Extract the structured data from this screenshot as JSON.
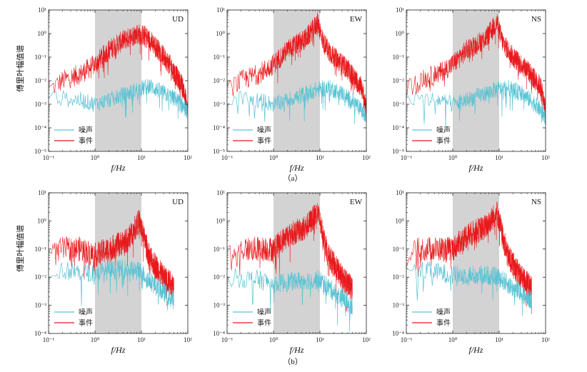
{
  "chart_data": {
    "type": "line",
    "xscale": "log",
    "yscale": "log",
    "xlabel": "f/Hz",
    "ylabel": "傅里叶幅值谱",
    "legend": [
      "噪声",
      "事件"
    ],
    "colors": {
      "noise": "#5bc3d4",
      "event": "#e8191c",
      "shade": "#d3d3d3"
    },
    "shaded_band": [
      1,
      10
    ],
    "x_ticks": [
      "10⁻¹",
      "10⁰",
      "10¹",
      "10²"
    ],
    "captions": {
      "a": "（a）",
      "b": "（b）"
    },
    "rows": [
      {
        "caption_key": "a",
        "y_ticks": [
          "10⁻⁵",
          "10⁻⁴",
          "10⁻³",
          "10⁻²",
          "10⁻¹",
          "10⁰",
          "10¹"
        ],
        "ylim_exp": [
          -5,
          1
        ],
        "panels": [
          {
            "component": "UD",
            "event": {
              "x": [
                0.1,
                0.2,
                0.5,
                1,
                2,
                4,
                8,
                12,
                20,
                40,
                80,
                100
              ],
              "y": [
                0.004,
                0.01,
                0.02,
                0.05,
                0.2,
                0.5,
                1,
                0.8,
                0.3,
                0.05,
                0.005,
                0.0005
              ]
            },
            "noise": {
              "x": [
                0.1,
                0.5,
                1,
                3,
                8,
                15,
                30,
                60,
                100
              ],
              "y": [
                0.002,
                0.0015,
                0.001,
                0.002,
                0.004,
                0.006,
                0.003,
                0.0015,
                0.0005
              ]
            }
          },
          {
            "component": "EW",
            "event": {
              "x": [
                0.1,
                0.2,
                0.5,
                1,
                2,
                5,
                9,
                12,
                20,
                40,
                80,
                100
              ],
              "y": [
                0.004,
                0.01,
                0.02,
                0.05,
                0.2,
                0.6,
                3,
                0.4,
                0.1,
                0.03,
                0.005,
                0.0005
              ]
            },
            "noise": {
              "x": [
                0.1,
                0.5,
                1,
                3,
                8,
                15,
                30,
                60,
                100
              ],
              "y": [
                0.002,
                0.0015,
                0.001,
                0.002,
                0.004,
                0.005,
                0.003,
                0.001,
                0.0003
              ]
            }
          },
          {
            "component": "NS",
            "event": {
              "x": [
                0.1,
                0.2,
                0.5,
                1,
                2,
                5,
                9,
                12,
                20,
                40,
                80,
                100
              ],
              "y": [
                0.004,
                0.01,
                0.02,
                0.05,
                0.2,
                0.6,
                3,
                0.4,
                0.1,
                0.03,
                0.005,
                0.0005
              ]
            },
            "noise": {
              "x": [
                0.1,
                0.5,
                1,
                3,
                8,
                15,
                30,
                60,
                100
              ],
              "y": [
                0.002,
                0.0015,
                0.001,
                0.002,
                0.004,
                0.005,
                0.003,
                0.001,
                0.0003
              ]
            }
          }
        ]
      },
      {
        "caption_key": "b",
        "y_ticks": [
          "10⁻⁴",
          "10⁻³",
          "10⁻²",
          "10⁻¹",
          "10⁰",
          "10¹"
        ],
        "ylim_exp": [
          -4,
          1
        ],
        "panels": [
          {
            "component": "UD",
            "event": {
              "x": [
                0.1,
                0.2,
                0.5,
                1,
                2,
                5,
                9,
                15,
                30,
                50
              ],
              "y": [
                0.05,
                0.1,
                0.1,
                0.06,
                0.1,
                0.2,
                1,
                0.05,
                0.01,
                0.005
              ]
            },
            "noise": {
              "x": [
                0.1,
                0.5,
                1,
                5,
                10,
                20,
                50
              ],
              "y": [
                0.02,
                0.015,
                0.015,
                0.02,
                0.015,
                0.005,
                0.0015
              ]
            }
          },
          {
            "component": "EW",
            "event": {
              "x": [
                0.1,
                0.2,
                0.5,
                1,
                2,
                5,
                9,
                15,
                30,
                50
              ],
              "y": [
                0.05,
                0.1,
                0.1,
                0.1,
                0.3,
                0.6,
                2,
                0.06,
                0.01,
                0.004
              ]
            },
            "noise": {
              "x": [
                0.1,
                0.5,
                1,
                5,
                10,
                20,
                50
              ],
              "y": [
                0.01,
                0.008,
                0.006,
                0.008,
                0.008,
                0.003,
                0.001
              ]
            }
          },
          {
            "component": "NS",
            "event": {
              "x": [
                0.1,
                0.2,
                0.5,
                1,
                2,
                5,
                9,
                15,
                30,
                50
              ],
              "y": [
                0.05,
                0.1,
                0.1,
                0.1,
                0.3,
                0.6,
                2,
                0.06,
                0.01,
                0.004
              ]
            },
            "noise": {
              "x": [
                0.1,
                0.5,
                1,
                5,
                10,
                20,
                50
              ],
              "y": [
                0.02,
                0.015,
                0.012,
                0.012,
                0.01,
                0.004,
                0.0015
              ]
            }
          }
        ]
      }
    ]
  }
}
